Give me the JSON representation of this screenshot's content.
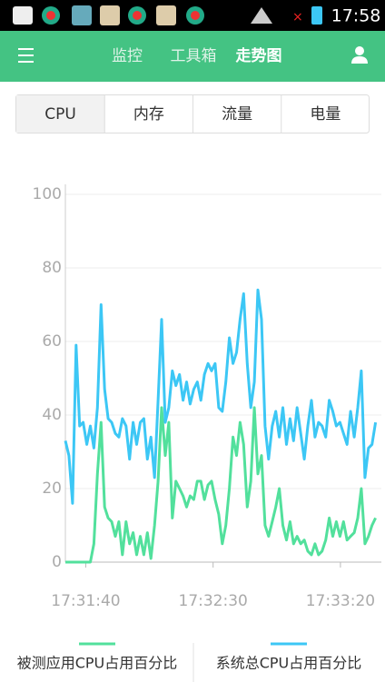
{
  "status_bar": {
    "time": "17:58"
  },
  "header": {
    "tabs": [
      "监控",
      "工具箱",
      "走势图"
    ],
    "active": 2
  },
  "segment_tabs": {
    "items": [
      "CPU",
      "内存",
      "流量",
      "电量"
    ],
    "active": 0
  },
  "chart_data": {
    "type": "line",
    "x": [
      0,
      1.4,
      2.8,
      4.2,
      5.6,
      7,
      8.4,
      9.8,
      11.2,
      12.6,
      14,
      15.4,
      16.8,
      18.2,
      19.6,
      21,
      22.4,
      23.8,
      25.2,
      26.6,
      28,
      29.4,
      30.8,
      32.2,
      33.6,
      35,
      36.4,
      37.8,
      39.2,
      40.6,
      42,
      43.4,
      44.8,
      46.2,
      47.6,
      49,
      50.4,
      51.8,
      53.2,
      54.6,
      56,
      57.4,
      58.8,
      60.2,
      61.6,
      63,
      64.4,
      65.8,
      67.2,
      68.6,
      70,
      71.4,
      72.8,
      74.2,
      75.6,
      77,
      78.4,
      79.8,
      81.2,
      82.6,
      84,
      85.4,
      86.8,
      88.2,
      89.6,
      91,
      92.4,
      93.8,
      95.2,
      96.6,
      98,
      99.4,
      100.8,
      102.2,
      103.6,
      105,
      106.4,
      107.8,
      109.2,
      110.6,
      112,
      113.4,
      114.8,
      116.2,
      117.6,
      119,
      120.4,
      121.8
    ],
    "series": [
      {
        "name": "被测应用CPU占用百分比",
        "color": "#52e09c",
        "values": [
          0,
          0,
          0,
          0,
          0,
          0,
          0,
          0,
          5,
          24,
          38,
          15,
          12,
          11,
          7,
          11,
          2,
          11,
          5,
          8,
          2,
          7,
          2,
          8,
          1,
          10,
          22,
          42,
          29,
          38,
          12,
          22,
          20,
          18,
          15,
          18,
          17,
          22,
          22,
          17,
          21,
          22,
          17,
          13,
          5,
          10,
          20,
          34,
          29,
          38,
          32,
          15,
          22,
          42,
          24,
          29,
          10,
          7,
          11,
          15,
          20,
          10,
          6,
          11,
          5,
          7,
          5,
          6,
          3,
          2,
          5,
          2,
          3,
          6,
          12,
          7,
          11,
          7,
          11,
          6,
          7,
          8,
          12,
          20,
          5,
          7,
          10,
          12
        ]
      },
      {
        "name": "系统总CPU占用百分比",
        "color": "#3cc7f5",
        "values": [
          33,
          29,
          16,
          59,
          37,
          38,
          32,
          37,
          31,
          42,
          70,
          47,
          39,
          38,
          35,
          34,
          39,
          37,
          28,
          38,
          32,
          38,
          39,
          28,
          34,
          23,
          44,
          66,
          38,
          42,
          52,
          48,
          51,
          44,
          49,
          43,
          47,
          49,
          44,
          51,
          54,
          52,
          54,
          42,
          41,
          49,
          61,
          54,
          57,
          66,
          73,
          54,
          42,
          49,
          74,
          66,
          37,
          28,
          37,
          41,
          34,
          42,
          32,
          39,
          33,
          42,
          35,
          28,
          37,
          44,
          34,
          38,
          37,
          34,
          44,
          41,
          37,
          38,
          35,
          32,
          41,
          34,
          42,
          52,
          23,
          31,
          32,
          38
        ]
      }
    ],
    "xlim": [
      0,
      123
    ],
    "xticks": [
      {
        "value": 8,
        "label": "17:31:40"
      },
      {
        "value": 58,
        "label": "17:32:30"
      },
      {
        "value": 108,
        "label": "17:33:20"
      }
    ],
    "ylim": [
      0,
      100
    ],
    "yticks": [
      0,
      20,
      40,
      60,
      80,
      100
    ],
    "grid": true
  }
}
